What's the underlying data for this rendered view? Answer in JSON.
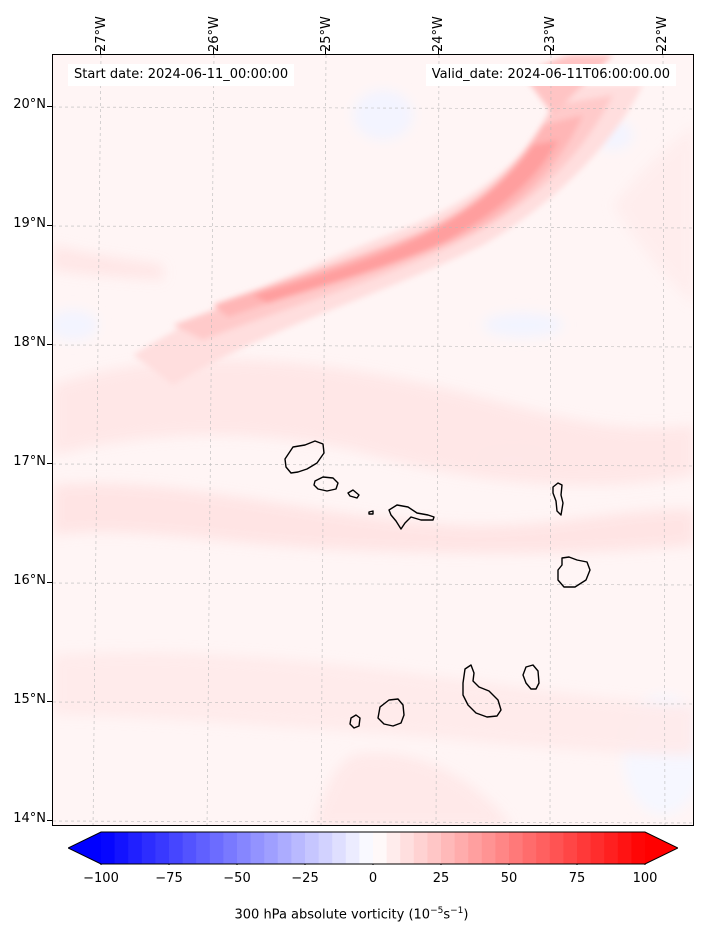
{
  "header": {
    "start_date": "Start date: 2024-06-11_00:00:00",
    "valid_date": "Valid_date: 2024-06-11T06:00:00.00"
  },
  "map": {
    "longitude_ticks": [
      "27°W",
      "26°W",
      "25°W",
      "24°W",
      "23°W",
      "22°W"
    ],
    "latitude_ticks": [
      "20°N",
      "19°N",
      "18°N",
      "17°N",
      "16°N",
      "15°N",
      "14°N"
    ],
    "field": "300 hPa absolute vorticity",
    "features": [
      "coastline-santo-antao",
      "coastline-sao-vicente",
      "coastline-santa-luzia",
      "coastline-sao-nicolau",
      "coastline-sal",
      "coastline-boa-vista",
      "coastline-maio",
      "coastline-santiago",
      "coastline-fogo",
      "coastline-brava"
    ],
    "colors": {
      "positive": "#ff0000",
      "negative": "#0000ff",
      "neutral": "#ffffff"
    }
  },
  "colorbar": {
    "ticks": [
      "−100",
      "−75",
      "−50",
      "−25",
      "0",
      "25",
      "50",
      "75",
      "100"
    ],
    "label_prefix": "300 hPa absolute vorticity (10",
    "label_exp1": "−5",
    "label_mid": "s",
    "label_exp2": "−1",
    "label_suffix": ")"
  }
}
